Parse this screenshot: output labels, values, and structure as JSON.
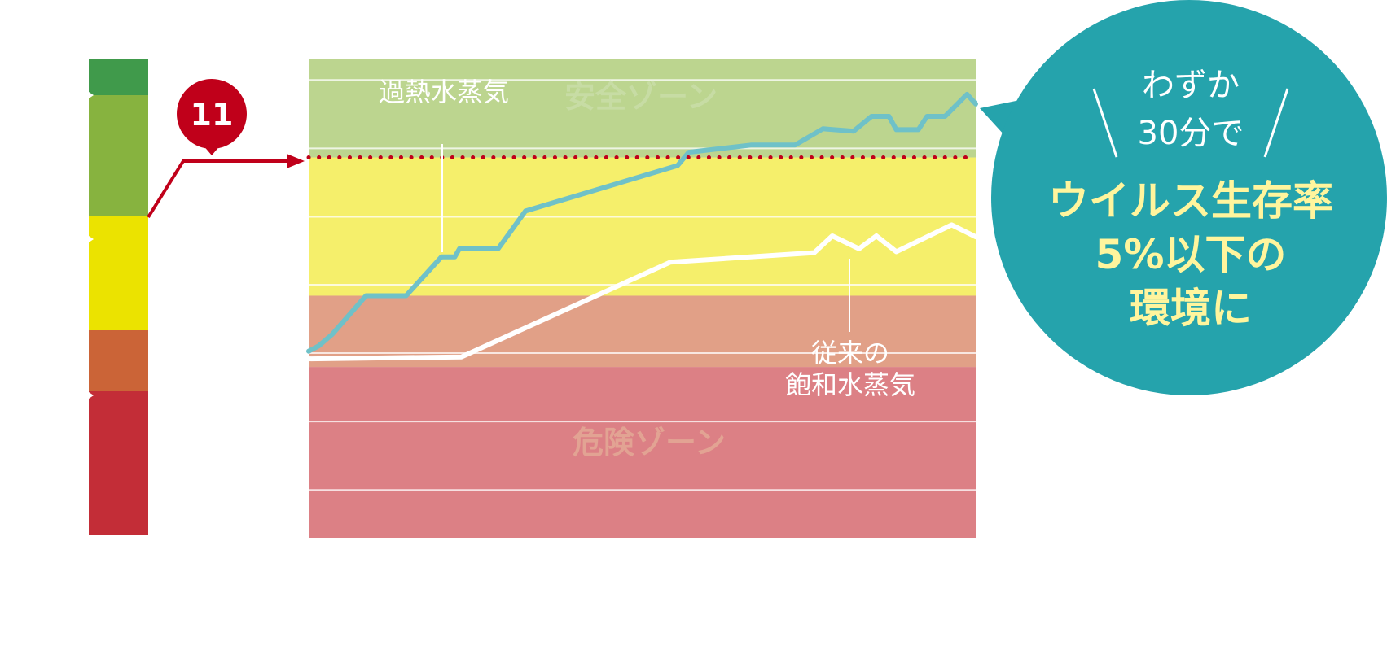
{
  "colors": {
    "scale_dark_green": "#409a4b",
    "scale_green": "#87b33f",
    "scale_yellow": "#ebe300",
    "scale_orange": "#cb6437",
    "scale_red": "#c32d37",
    "zone_green": "#bcd58f",
    "zone_yellow": "#f5ef6b",
    "zone_orange": "#e1a087",
    "zone_red": "#dc8085",
    "marker_red": "#c0001a",
    "line_teal": "#6fc1c8",
    "line_white": "#ffffff",
    "bubble_teal": "#25a3ac",
    "bubble_highlight": "#fff59d"
  },
  "marker": {
    "label": "11"
  },
  "chart_data": {
    "type": "line",
    "title": "",
    "xlabel": "",
    "ylabel": "",
    "xlim": [
      0,
      100
    ],
    "ylim": [
      0,
      100
    ],
    "grid": true,
    "grid_y": [
      10,
      24.3,
      38.6,
      52.9,
      67.1,
      81.4,
      95.7
    ],
    "threshold": {
      "value": 79.5,
      "style": "dotted",
      "marker_label": "11"
    },
    "zones": [
      {
        "name": "danger",
        "from": 0,
        "to": 35.7,
        "label": "危険ゾーン"
      },
      {
        "name": "warning",
        "from": 35.7,
        "to": 50.6
      },
      {
        "name": "caution",
        "from": 50.6,
        "to": 79.5
      },
      {
        "name": "safe",
        "from": 79.5,
        "to": 100,
        "label": "安全ゾーン"
      }
    ],
    "series": [
      {
        "name": "過熱水蒸気",
        "label_text": "過熱水蒸気",
        "x": [
          0,
          1.5,
          3.5,
          8.6,
          14.6,
          19.9,
          21.9,
          22.6,
          28.4,
          32.5,
          55.3,
          57,
          66.3,
          72.9,
          77.1,
          81.7,
          84.4,
          87,
          88.1,
          91.4,
          92.7,
          95.4,
          98.7,
          100
        ],
        "values": [
          39,
          40.1,
          42.5,
          50.6,
          50.6,
          58.7,
          58.7,
          60.4,
          60.4,
          68.3,
          77.8,
          80.6,
          82.1,
          82.1,
          85.5,
          85.0,
          88.1,
          88.1,
          85.3,
          85.3,
          88.1,
          88.1,
          92.7,
          90.7
        ]
      },
      {
        "name": "従来の飽和水蒸気",
        "label_lines": [
          "従来の",
          "飽和水蒸気"
        ],
        "x": [
          0,
          22.9,
          54.2,
          75.8,
          78.5,
          82.5,
          85.1,
          88.1,
          96.4,
          100
        ],
        "values": [
          37.4,
          37.8,
          57.6,
          59.6,
          63.1,
          60.4,
          63.1,
          59.8,
          65.4,
          62.9
        ]
      }
    ],
    "annotations": [
      {
        "type": "callout",
        "lines": [
          "わずか",
          "30分で"
        ],
        "highlight_lines": [
          "ウイルス生存率",
          "5%以下の",
          "環境に"
        ]
      }
    ]
  }
}
